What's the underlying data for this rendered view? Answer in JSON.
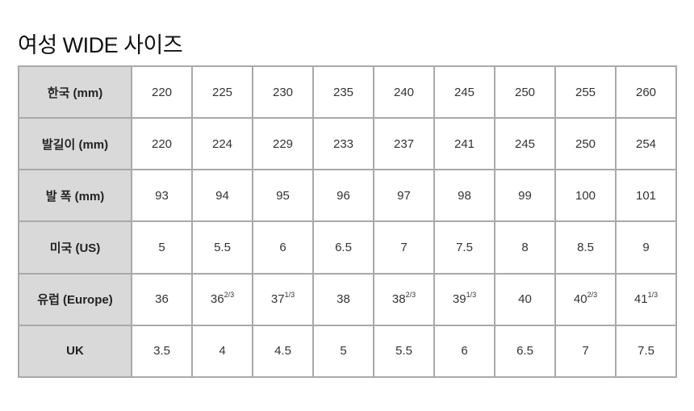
{
  "title": "여성 WIDE 사이즈",
  "rows": [
    {
      "label": "한국 (mm)",
      "cells": [
        {
          "v": "220"
        },
        {
          "v": "225"
        },
        {
          "v": "230"
        },
        {
          "v": "235"
        },
        {
          "v": "240"
        },
        {
          "v": "245"
        },
        {
          "v": "250"
        },
        {
          "v": "255"
        },
        {
          "v": "260"
        }
      ]
    },
    {
      "label": "발길이 (mm)",
      "cells": [
        {
          "v": "220"
        },
        {
          "v": "224"
        },
        {
          "v": "229"
        },
        {
          "v": "233"
        },
        {
          "v": "237"
        },
        {
          "v": "241"
        },
        {
          "v": "245"
        },
        {
          "v": "250"
        },
        {
          "v": "254"
        }
      ]
    },
    {
      "label": "발 폭 (mm)",
      "cells": [
        {
          "v": "93"
        },
        {
          "v": "94"
        },
        {
          "v": "95"
        },
        {
          "v": "96"
        },
        {
          "v": "97"
        },
        {
          "v": "98"
        },
        {
          "v": "99"
        },
        {
          "v": "100"
        },
        {
          "v": "101"
        }
      ]
    },
    {
      "label": "미국 (US)",
      "cells": [
        {
          "v": "5"
        },
        {
          "v": "5.5"
        },
        {
          "v": "6"
        },
        {
          "v": "6.5"
        },
        {
          "v": "7"
        },
        {
          "v": "7.5"
        },
        {
          "v": "8"
        },
        {
          "v": "8.5"
        },
        {
          "v": "9"
        }
      ]
    },
    {
      "label": "유럽 (Europe)",
      "cells": [
        {
          "v": "36"
        },
        {
          "v": "36",
          "sup": "2/3"
        },
        {
          "v": "37",
          "sup": "1/3"
        },
        {
          "v": "38"
        },
        {
          "v": "38",
          "sup": "2/3"
        },
        {
          "v": "39",
          "sup": "1/3"
        },
        {
          "v": "40"
        },
        {
          "v": "40",
          "sup": "2/3"
        },
        {
          "v": "41",
          "sup": "1/3"
        }
      ]
    },
    {
      "label": "UK",
      "cells": [
        {
          "v": "3.5"
        },
        {
          "v": "4"
        },
        {
          "v": "4.5"
        },
        {
          "v": "5"
        },
        {
          "v": "5.5"
        },
        {
          "v": "6"
        },
        {
          "v": "6.5"
        },
        {
          "v": "7"
        },
        {
          "v": "7.5"
        }
      ]
    }
  ]
}
